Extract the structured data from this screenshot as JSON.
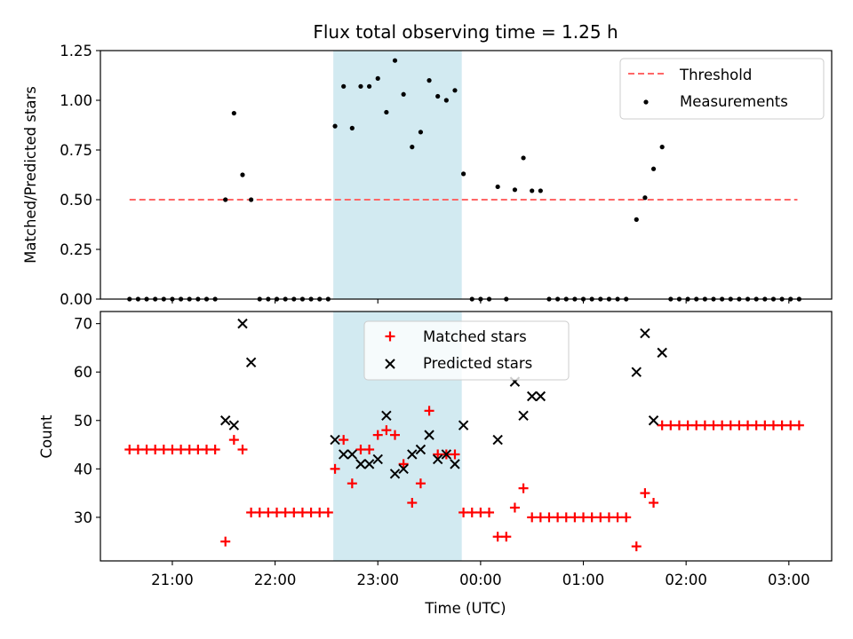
{
  "figure": {
    "title": "Flux total observing time = 1.25 h",
    "xlabel": "Time (UTC)"
  },
  "chart_data": [
    {
      "type": "scatter",
      "ylabel": "Matched/Predicted stars",
      "ylim": [
        0,
        1.25
      ],
      "yticks": [
        0.0,
        0.25,
        0.5,
        0.75,
        1.0,
        1.25
      ],
      "ytick_labels": [
        "0.00",
        "0.25",
        "0.50",
        "0.75",
        "1.00",
        "1.25"
      ],
      "xlim": [
        "20:18",
        "03:25"
      ],
      "xticks": [
        "21:00",
        "22:00",
        "23:00",
        "00:00",
        "01:00",
        "02:00",
        "03:00"
      ],
      "legend": {
        "placement": "top-right",
        "entries": [
          "Threshold",
          "Measurements"
        ]
      },
      "shaded_span": {
        "start": "22:34",
        "end": "23:49",
        "color": "#add8e6"
      },
      "threshold": {
        "name": "Threshold",
        "y": 0.5,
        "x_start": "20:35",
        "x_end": "03:05",
        "color": "#ff6666"
      },
      "series": [
        {
          "name": "Measurements",
          "marker": "dot",
          "color": "#000000",
          "points": [
            [
              "20:35",
              0
            ],
            [
              "20:40",
              0
            ],
            [
              "20:45",
              0
            ],
            [
              "20:50",
              0
            ],
            [
              "20:55",
              0
            ],
            [
              "21:00",
              0
            ],
            [
              "21:05",
              0
            ],
            [
              "21:10",
              0
            ],
            [
              "21:15",
              0
            ],
            [
              "21:20",
              0
            ],
            [
              "21:25",
              0
            ],
            [
              "21:31",
              0.5
            ],
            [
              "21:36",
              0.935
            ],
            [
              "21:41",
              0.625
            ],
            [
              "21:46",
              0.5
            ],
            [
              "21:51",
              0
            ],
            [
              "21:56",
              0
            ],
            [
              "22:01",
              0
            ],
            [
              "22:06",
              0
            ],
            [
              "22:11",
              0
            ],
            [
              "22:16",
              0
            ],
            [
              "22:21",
              0
            ],
            [
              "22:26",
              0
            ],
            [
              "22:31",
              0
            ],
            [
              "22:35",
              0.87
            ],
            [
              "22:40",
              1.07
            ],
            [
              "22:45",
              0.86
            ],
            [
              "22:50",
              1.07
            ],
            [
              "22:55",
              1.07
            ],
            [
              "23:00",
              1.11
            ],
            [
              "23:05",
              0.94
            ],
            [
              "23:10",
              1.2
            ],
            [
              "23:15",
              1.03
            ],
            [
              "23:20",
              0.765
            ],
            [
              "23:25",
              0.84
            ],
            [
              "23:30",
              1.1
            ],
            [
              "23:35",
              1.02
            ],
            [
              "23:40",
              1.0
            ],
            [
              "23:45",
              1.05
            ],
            [
              "23:50",
              0.63
            ],
            [
              "23:55",
              0
            ],
            [
              "00:00",
              0
            ],
            [
              "00:05",
              0
            ],
            [
              "00:10",
              0.565
            ],
            [
              "00:15",
              0
            ],
            [
              "00:20",
              0.55
            ],
            [
              "00:25",
              0.71
            ],
            [
              "00:30",
              0.545
            ],
            [
              "00:35",
              0.545
            ],
            [
              "00:40",
              0
            ],
            [
              "00:45",
              0
            ],
            [
              "00:50",
              0
            ],
            [
              "00:55",
              0
            ],
            [
              "01:00",
              0
            ],
            [
              "01:05",
              0
            ],
            [
              "01:10",
              0
            ],
            [
              "01:15",
              0
            ],
            [
              "01:20",
              0
            ],
            [
              "01:25",
              0
            ],
            [
              "01:31",
              0.4
            ],
            [
              "01:36",
              0.51
            ],
            [
              "01:41",
              0.655
            ],
            [
              "01:46",
              0.765
            ],
            [
              "01:51",
              0
            ],
            [
              "01:56",
              0
            ],
            [
              "02:01",
              0
            ],
            [
              "02:06",
              0
            ],
            [
              "02:11",
              0
            ],
            [
              "02:16",
              0
            ],
            [
              "02:21",
              0
            ],
            [
              "02:26",
              0
            ],
            [
              "02:31",
              0
            ],
            [
              "02:36",
              0
            ],
            [
              "02:41",
              0
            ],
            [
              "02:46",
              0
            ],
            [
              "02:51",
              0
            ],
            [
              "02:56",
              0
            ],
            [
              "03:01",
              0
            ],
            [
              "03:06",
              0
            ]
          ]
        }
      ]
    },
    {
      "type": "scatter",
      "ylabel": "Count",
      "ylim": [
        21,
        72.5
      ],
      "yticks": [
        30,
        40,
        50,
        60,
        70
      ],
      "ytick_labels": [
        "30",
        "40",
        "50",
        "60",
        "70"
      ],
      "xlim": [
        "20:18",
        "03:25"
      ],
      "xticks": [
        "21:00",
        "22:00",
        "23:00",
        "00:00",
        "01:00",
        "02:00",
        "03:00"
      ],
      "xtick_labels": [
        "21:00",
        "22:00",
        "23:00",
        "00:00",
        "01:00",
        "02:00",
        "03:00"
      ],
      "legend": {
        "placement": "top-center",
        "entries": [
          "Matched stars",
          "Predicted stars"
        ]
      },
      "shaded_span": {
        "start": "22:34",
        "end": "23:49",
        "color": "#add8e6"
      },
      "series": [
        {
          "name": "Matched stars",
          "marker": "plus",
          "color": "#ff0000",
          "points": [
            [
              "20:35",
              44
            ],
            [
              "20:40",
              44
            ],
            [
              "20:45",
              44
            ],
            [
              "20:50",
              44
            ],
            [
              "20:55",
              44
            ],
            [
              "21:00",
              44
            ],
            [
              "21:05",
              44
            ],
            [
              "21:10",
              44
            ],
            [
              "21:15",
              44
            ],
            [
              "21:20",
              44
            ],
            [
              "21:25",
              44
            ],
            [
              "21:31",
              25
            ],
            [
              "21:36",
              46
            ],
            [
              "21:41",
              44
            ],
            [
              "21:46",
              31
            ],
            [
              "21:51",
              31
            ],
            [
              "21:56",
              31
            ],
            [
              "22:01",
              31
            ],
            [
              "22:06",
              31
            ],
            [
              "22:11",
              31
            ],
            [
              "22:16",
              31
            ],
            [
              "22:21",
              31
            ],
            [
              "22:26",
              31
            ],
            [
              "22:31",
              31
            ],
            [
              "22:35",
              40
            ],
            [
              "22:40",
              46
            ],
            [
              "22:45",
              37
            ],
            [
              "22:50",
              44
            ],
            [
              "22:55",
              44
            ],
            [
              "23:00",
              47
            ],
            [
              "23:05",
              48
            ],
            [
              "23:10",
              47
            ],
            [
              "23:15",
              41
            ],
            [
              "23:20",
              33
            ],
            [
              "23:25",
              37
            ],
            [
              "23:30",
              52
            ],
            [
              "23:35",
              43
            ],
            [
              "23:40",
              43
            ],
            [
              "23:45",
              43
            ],
            [
              "23:50",
              31
            ],
            [
              "23:55",
              31
            ],
            [
              "00:00",
              31
            ],
            [
              "00:05",
              31
            ],
            [
              "00:10",
              26
            ],
            [
              "00:15",
              26
            ],
            [
              "00:20",
              32
            ],
            [
              "00:25",
              36
            ],
            [
              "00:30",
              30
            ],
            [
              "00:35",
              30
            ],
            [
              "00:40",
              30
            ],
            [
              "00:45",
              30
            ],
            [
              "00:50",
              30
            ],
            [
              "00:55",
              30
            ],
            [
              "01:00",
              30
            ],
            [
              "01:05",
              30
            ],
            [
              "01:10",
              30
            ],
            [
              "01:15",
              30
            ],
            [
              "01:20",
              30
            ],
            [
              "01:25",
              30
            ],
            [
              "01:31",
              24
            ],
            [
              "01:36",
              35
            ],
            [
              "01:41",
              33
            ],
            [
              "01:46",
              49
            ],
            [
              "01:51",
              49
            ],
            [
              "01:56",
              49
            ],
            [
              "02:01",
              49
            ],
            [
              "02:06",
              49
            ],
            [
              "02:11",
              49
            ],
            [
              "02:16",
              49
            ],
            [
              "02:21",
              49
            ],
            [
              "02:26",
              49
            ],
            [
              "02:31",
              49
            ],
            [
              "02:36",
              49
            ],
            [
              "02:41",
              49
            ],
            [
              "02:46",
              49
            ],
            [
              "02:51",
              49
            ],
            [
              "02:56",
              49
            ],
            [
              "03:01",
              49
            ],
            [
              "03:06",
              49
            ]
          ]
        },
        {
          "name": "Predicted stars",
          "marker": "x",
          "color": "#000000",
          "points": [
            [
              "21:31",
              50
            ],
            [
              "21:36",
              49
            ],
            [
              "21:41",
              70
            ],
            [
              "21:46",
              62
            ],
            [
              "22:35",
              46
            ],
            [
              "22:40",
              43
            ],
            [
              "22:45",
              43
            ],
            [
              "22:50",
              41
            ],
            [
              "22:55",
              41
            ],
            [
              "23:00",
              42
            ],
            [
              "23:05",
              51
            ],
            [
              "23:10",
              39
            ],
            [
              "23:15",
              40
            ],
            [
              "23:20",
              43
            ],
            [
              "23:25",
              44
            ],
            [
              "23:30",
              47
            ],
            [
              "23:35",
              42
            ],
            [
              "23:40",
              43
            ],
            [
              "23:45",
              41
            ],
            [
              "23:50",
              49
            ],
            [
              "00:10",
              46
            ],
            [
              "00:20",
              58
            ],
            [
              "00:25",
              51
            ],
            [
              "00:30",
              55
            ],
            [
              "00:35",
              55
            ],
            [
              "01:31",
              60
            ],
            [
              "01:36",
              68
            ],
            [
              "01:41",
              50
            ],
            [
              "01:46",
              64
            ]
          ]
        }
      ]
    }
  ]
}
